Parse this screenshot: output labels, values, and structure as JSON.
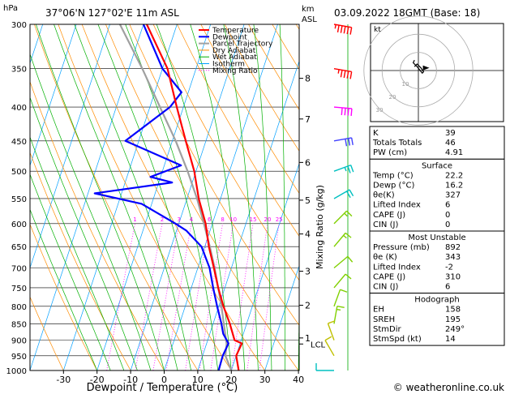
{
  "header": {
    "hpa_label": "hPa",
    "location": "37°06'N  127°02'E  11m  ASL",
    "km_label": "km",
    "asl_label": "ASL",
    "datetime": "03.09.2022  18GMT  (Base: 18)"
  },
  "legend": [
    "Temperature",
    "Dewpoint",
    "Parcel Trajectory",
    "Dry Adiabat",
    "Wet Adiabat",
    "Isotherm",
    "Mixing Ratio"
  ],
  "colors": {
    "temperature": "#ff0000",
    "dewpoint": "#0000ff",
    "parcel": "#a0a0a0",
    "dry_adiabat": "#ff8c00",
    "wet_adiabat": "#00b000",
    "isotherm": "#00a0ff",
    "mixing_ratio": "#ff00ff",
    "wind_red": "#ff0000",
    "wind_magenta": "#ff00ff",
    "wind_blue": "#4040ff",
    "wind_cyan": "#00c0c0",
    "wind_green": "#80d000",
    "wind_yellow": "#c0c000"
  },
  "footer": {
    "xlabel": "Dewpoint / Temperature (°C)",
    "ylabel_right": "Mixing Ratio (g/kg)",
    "credit": "© weatheronline.co.uk"
  },
  "chart_data": {
    "type": "line",
    "title": "Skew-T log-P diagram",
    "pressure_levels": [
      300,
      350,
      400,
      450,
      500,
      550,
      600,
      650,
      700,
      750,
      800,
      850,
      900,
      950,
      1000
    ],
    "x_ticks": [
      -30,
      -20,
      -10,
      0,
      10,
      20,
      30,
      40
    ],
    "x_tick_labels": [
      "-30",
      "-20",
      "-10",
      "0",
      "10",
      "20",
      "30",
      "40"
    ],
    "xlim": [
      -40,
      40
    ],
    "ylim": [
      300,
      1000
    ],
    "km_ticks": [
      {
        "label": "8",
        "p": 362
      },
      {
        "label": "7",
        "p": 417
      },
      {
        "label": "6",
        "p": 485
      },
      {
        "label": "5",
        "p": 553
      },
      {
        "label": "4",
        "p": 622
      },
      {
        "label": "3",
        "p": 708
      },
      {
        "label": "2",
        "p": 797
      },
      {
        "label": "1",
        "p": 893
      }
    ],
    "lcl_label": "LCL",
    "lcl_pressure": 912,
    "mixing_ratio_labels": [
      "1",
      "2",
      "3",
      "4",
      "6",
      "8",
      "10",
      "15",
      "20",
      "25"
    ],
    "mixing_ratio_values": [
      1,
      2,
      3,
      4,
      6,
      8,
      10,
      15,
      20,
      25
    ],
    "temperature": [
      {
        "p": 1000,
        "t": 22.2
      },
      {
        "p": 950,
        "t": 20.0
      },
      {
        "p": 910,
        "t": 20.5
      },
      {
        "p": 900,
        "t": 18.0
      },
      {
        "p": 850,
        "t": 15.0
      },
      {
        "p": 800,
        "t": 11.4
      },
      {
        "p": 750,
        "t": 8.0
      },
      {
        "p": 700,
        "t": 4.8
      },
      {
        "p": 650,
        "t": 1.2
      },
      {
        "p": 600,
        "t": -2.0
      },
      {
        "p": 550,
        "t": -6.5
      },
      {
        "p": 500,
        "t": -10.5
      },
      {
        "p": 450,
        "t": -16.0
      },
      {
        "p": 400,
        "t": -22.0
      },
      {
        "p": 350,
        "t": -28.5
      },
      {
        "p": 300,
        "t": -39.0
      }
    ],
    "dewpoint": [
      {
        "p": 1000,
        "t": 16.2
      },
      {
        "p": 950,
        "t": 16.0
      },
      {
        "p": 910,
        "t": 16.5
      },
      {
        "p": 880,
        "t": 14.0
      },
      {
        "p": 850,
        "t": 12.5
      },
      {
        "p": 800,
        "t": 9.5
      },
      {
        "p": 750,
        "t": 6.5
      },
      {
        "p": 700,
        "t": 3.5
      },
      {
        "p": 650,
        "t": -1.0
      },
      {
        "p": 615,
        "t": -7.0
      },
      {
        "p": 600,
        "t": -11.0
      },
      {
        "p": 560,
        "t": -23.0
      },
      {
        "p": 540,
        "t": -38.0
      },
      {
        "p": 520,
        "t": -16.0
      },
      {
        "p": 510,
        "t": -23.0
      },
      {
        "p": 490,
        "t": -15.0
      },
      {
        "p": 450,
        "t": -34.0
      },
      {
        "p": 400,
        "t": -24.0
      },
      {
        "p": 380,
        "t": -22.0
      },
      {
        "p": 350,
        "t": -30.0
      },
      {
        "p": 300,
        "t": -40.0
      }
    ],
    "parcel": [
      {
        "p": 1000,
        "t": 20.0
      },
      {
        "p": 950,
        "t": 16.8
      },
      {
        "p": 912,
        "t": 16.0
      },
      {
        "p": 850,
        "t": 13.2
      },
      {
        "p": 800,
        "t": 10.8
      },
      {
        "p": 750,
        "t": 8.0
      },
      {
        "p": 700,
        "t": 5.0
      },
      {
        "p": 650,
        "t": 1.5
      },
      {
        "p": 600,
        "t": -2.5
      },
      {
        "p": 550,
        "t": -7.0
      },
      {
        "p": 500,
        "t": -12.5
      },
      {
        "p": 450,
        "t": -19.0
      },
      {
        "p": 400,
        "t": -27.0
      },
      {
        "p": 350,
        "t": -36.0
      },
      {
        "p": 300,
        "t": -47.0
      }
    ],
    "wind_barbs": [
      {
        "p": 300,
        "dir": 280,
        "spd": 55
      },
      {
        "p": 350,
        "dir": 280,
        "spd": 45
      },
      {
        "p": 400,
        "dir": 275,
        "spd": 40
      },
      {
        "p": 450,
        "dir": 260,
        "spd": 30
      },
      {
        "p": 500,
        "dir": 250,
        "spd": 25
      },
      {
        "p": 550,
        "dir": 240,
        "spd": 20
      },
      {
        "p": 600,
        "dir": 225,
        "spd": 15
      },
      {
        "p": 650,
        "dir": 220,
        "spd": 15
      },
      {
        "p": 700,
        "dir": 230,
        "spd": 10
      },
      {
        "p": 750,
        "dir": 220,
        "spd": 10
      },
      {
        "p": 800,
        "dir": 200,
        "spd": 10
      },
      {
        "p": 850,
        "dir": 190,
        "spd": 15
      },
      {
        "p": 900,
        "dir": 160,
        "spd": 10
      },
      {
        "p": 950,
        "dir": 150,
        "spd": 10
      },
      {
        "p": 1000,
        "dir": 90,
        "spd": 10
      }
    ],
    "hodograph": {
      "unit_label": "kt",
      "ring_labels": [
        "10",
        "20",
        "30"
      ],
      "ring_values": [
        10,
        20,
        30
      ],
      "points": [
        {
          "u": -3,
          "v": 3
        },
        {
          "u": -1,
          "v": 5
        },
        {
          "u": 2,
          "v": 2
        },
        {
          "u": 4,
          "v": -1
        },
        {
          "u": 3,
          "v": -2
        },
        {
          "u": -1,
          "v": 3
        },
        {
          "u": -4,
          "v": 6
        },
        {
          "u": -3,
          "v": 8
        }
      ],
      "storm_motion": {
        "u": 6,
        "v": 2
      }
    }
  },
  "indices_table": {
    "rows": [
      {
        "label": "K",
        "value": "39"
      },
      {
        "label": "Totals Totals",
        "value": "46"
      },
      {
        "label": "PW (cm)",
        "value": "4.91"
      }
    ]
  },
  "surface_table": {
    "title": "Surface",
    "rows": [
      {
        "label": "Temp (°C)",
        "value": "22.2"
      },
      {
        "label": "Dewp (°C)",
        "value": "16.2"
      },
      {
        "label": "θe(K)",
        "value": "327"
      },
      {
        "label": "Lifted Index",
        "value": "6"
      },
      {
        "label": "CAPE (J)",
        "value": "0"
      },
      {
        "label": "CIN (J)",
        "value": "0"
      }
    ]
  },
  "unstable_table": {
    "title": "Most Unstable",
    "rows": [
      {
        "label": "Pressure (mb)",
        "value": "892"
      },
      {
        "label": "θe (K)",
        "value": "343"
      },
      {
        "label": "Lifted Index",
        "value": "-2"
      },
      {
        "label": "CAPE (J)",
        "value": "310"
      },
      {
        "label": "CIN (J)",
        "value": "6"
      }
    ]
  },
  "hodograph_table": {
    "title": "Hodograph",
    "rows": [
      {
        "label": "EH",
        "value": "158"
      },
      {
        "label": "SREH",
        "value": "195"
      },
      {
        "label": "StmDir",
        "value": "249°"
      },
      {
        "label": "StmSpd (kt)",
        "value": "14"
      }
    ]
  }
}
